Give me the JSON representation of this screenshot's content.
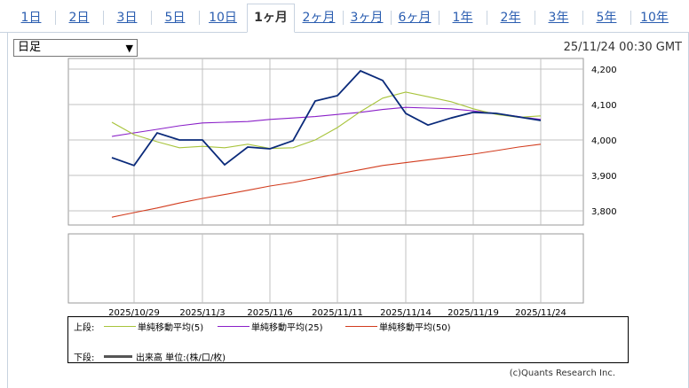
{
  "tabs": [
    {
      "label": "1日",
      "active": false
    },
    {
      "label": "2日",
      "active": false
    },
    {
      "label": "3日",
      "active": false
    },
    {
      "label": "5日",
      "active": false
    },
    {
      "label": "10日",
      "active": false
    },
    {
      "label": "1ヶ月",
      "active": true
    },
    {
      "label": "2ヶ月",
      "active": false
    },
    {
      "label": "3ヶ月",
      "active": false
    },
    {
      "label": "6ヶ月",
      "active": false
    },
    {
      "label": "1年",
      "active": false
    },
    {
      "label": "2年",
      "active": false
    },
    {
      "label": "3年",
      "active": false
    },
    {
      "label": "5年",
      "active": false
    },
    {
      "label": "10年",
      "active": false
    }
  ],
  "period_select": {
    "value": "日足"
  },
  "timestamp": "25/11/24 00:30 GMT",
  "legend": {
    "upper_label": "上段:",
    "lower_label": "下段:",
    "volume_label": "出来高 単位:(株/口/枚)"
  },
  "credit": "(c)Quants Research Inc.",
  "colors": {
    "price": "#0a2a7a",
    "ma5": "#a8c43c",
    "ma25": "#8a20c8",
    "ma50": "#d23c1e",
    "grid": "#c0c0c0"
  },
  "chart_data": {
    "type": "line",
    "x": [
      "2025/10/28",
      "2025/10/29",
      "2025/10/30",
      "2025/10/31",
      "2025/11/3",
      "2025/11/4",
      "2025/11/5",
      "2025/11/6",
      "2025/11/7",
      "2025/11/10",
      "2025/11/11",
      "2025/11/12",
      "2025/11/13",
      "2025/11/14",
      "2025/11/17",
      "2025/11/18",
      "2025/11/19",
      "2025/11/20",
      "2025/11/21",
      "2025/11/24"
    ],
    "x_ticks": [
      "2025/10/29",
      "2025/11/3",
      "2025/11/6",
      "2025/11/11",
      "2025/11/14",
      "2025/11/19",
      "2025/11/24"
    ],
    "ylim": [
      3760,
      4230
    ],
    "y_ticks": [
      3800,
      3900,
      4000,
      4100,
      4200
    ],
    "y_tick_labels": [
      "3,800",
      "3,900",
      "4,000",
      "4,100",
      "4,200"
    ],
    "grid": true,
    "series": [
      {
        "key": "price",
        "values": [
          3950,
          3928,
          4020,
          4000,
          4000,
          3930,
          3980,
          3975,
          3998,
          4110,
          4125,
          4195,
          4168,
          4075,
          4042,
          4062,
          4078,
          4075,
          4065,
          4055
        ]
      },
      {
        "key": "ma5",
        "name": "単純移動平均(5)",
        "values": [
          4050,
          4015,
          3995,
          3978,
          3982,
          3978,
          3988,
          3976,
          3978,
          4000,
          4035,
          4080,
          4118,
          4135,
          4122,
          4108,
          4088,
          4072,
          4064,
          4068
        ]
      },
      {
        "key": "ma25",
        "name": "単純移動平均(25)",
        "values": [
          4010,
          4020,
          4030,
          4040,
          4048,
          4050,
          4052,
          4058,
          4062,
          4066,
          4072,
          4078,
          4086,
          4092,
          4090,
          4088,
          4082,
          4075,
          4066,
          4058
        ]
      },
      {
        "key": "ma50",
        "name": "単純移動平均(50)",
        "values": [
          3782,
          3795,
          3808,
          3822,
          3835,
          3846,
          3858,
          3870,
          3880,
          3892,
          3904,
          3916,
          3928,
          3936,
          3944,
          3952,
          3960,
          3970,
          3980,
          3988
        ]
      }
    ]
  }
}
